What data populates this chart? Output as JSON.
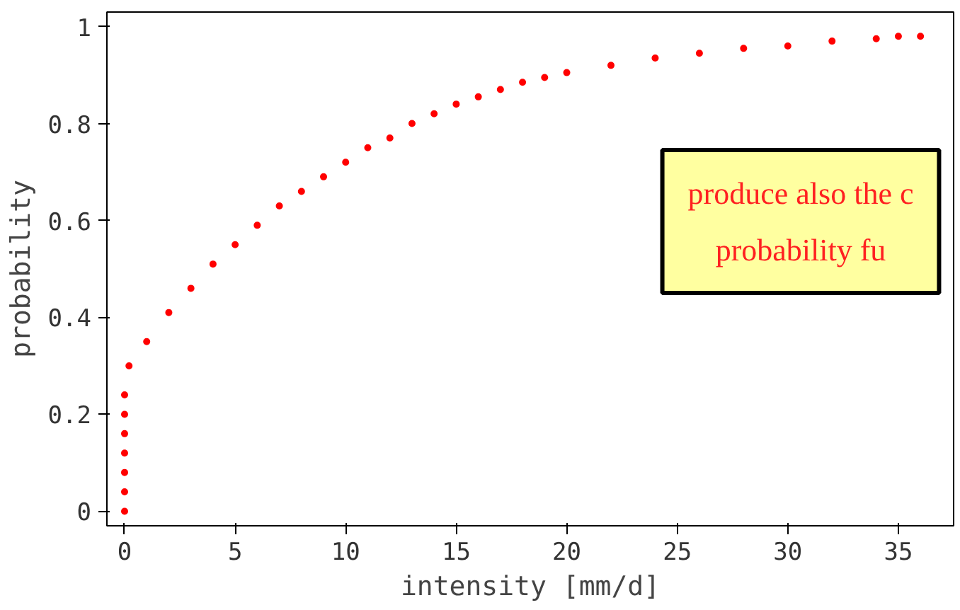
{
  "chart_data": {
    "type": "scatter",
    "xlabel": "intensity [mm/d]",
    "ylabel": "probability",
    "marker": "circle",
    "grid": false,
    "x": [
      0,
      0,
      0,
      0,
      0,
      0,
      0,
      0.2,
      1,
      2,
      3,
      4,
      5,
      6,
      7,
      8,
      9,
      10,
      11,
      12,
      13,
      14,
      15,
      16,
      17,
      18,
      19,
      20,
      22,
      24,
      26,
      28,
      30,
      32,
      34,
      35,
      36
    ],
    "series": [
      {
        "color": "#ff0000",
        "values": [
          0,
          0.04,
          0.08,
          0.12,
          0.16,
          0.2,
          0.24,
          0.3,
          0.35,
          0.41,
          0.46,
          0.51,
          0.55,
          0.59,
          0.63,
          0.66,
          0.69,
          0.72,
          0.75,
          0.77,
          0.8,
          0.82,
          0.84,
          0.855,
          0.87,
          0.885,
          0.895,
          0.905,
          0.92,
          0.935,
          0.945,
          0.955,
          0.96,
          0.97,
          0.975,
          0.98,
          0.98
        ]
      }
    ],
    "xlim": [
      -0.8,
      37.5
    ],
    "ylim": [
      -0.03,
      1.03
    ],
    "xticks": [
      0,
      5,
      10,
      15,
      20,
      25,
      30,
      35
    ],
    "yticks": [
      0,
      0.2,
      0.4,
      0.6,
      0.8,
      1
    ],
    "annotations": [
      "produce also the c",
      "probability fu"
    ]
  }
}
